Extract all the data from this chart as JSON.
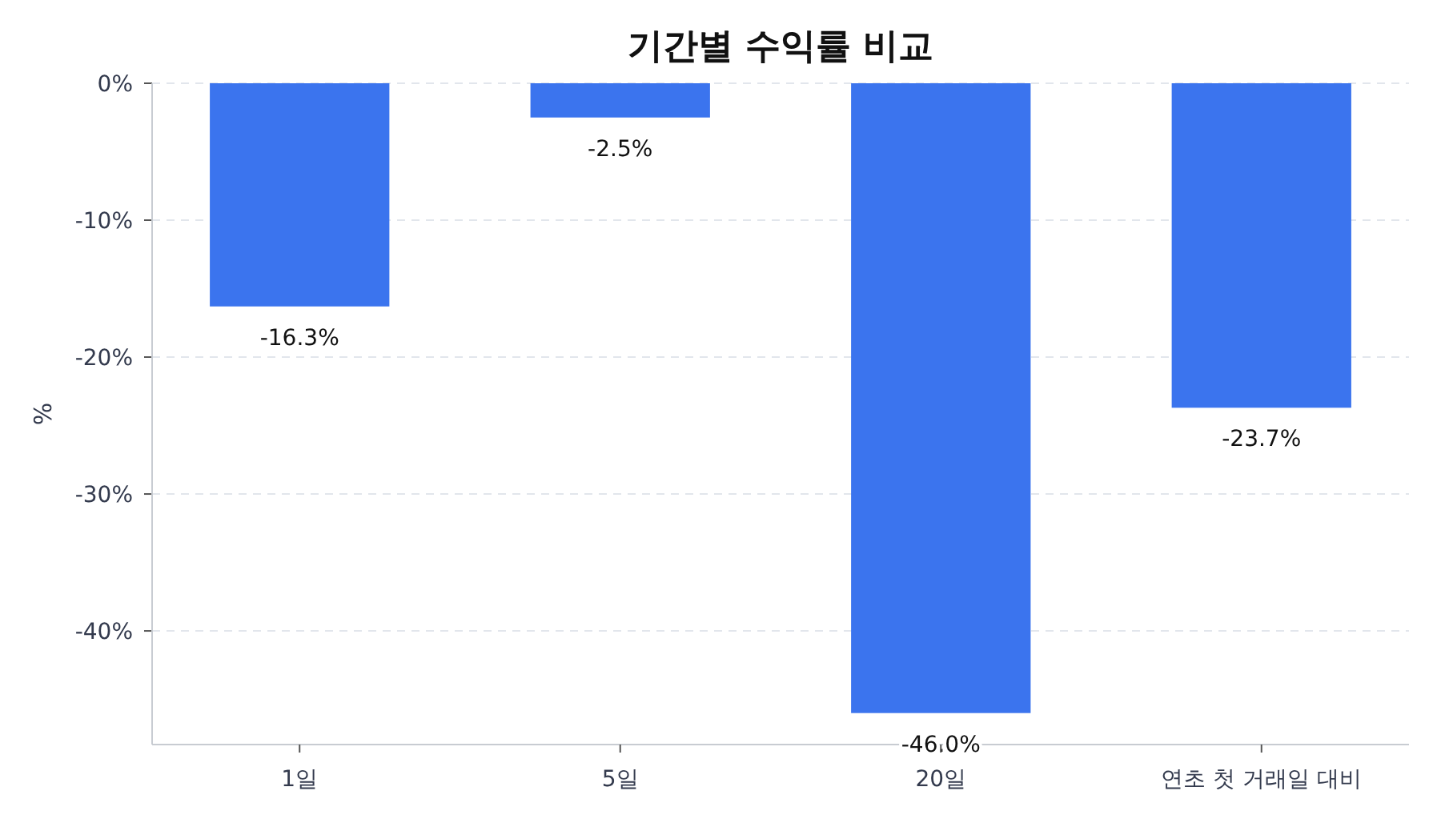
{
  "chart_data": {
    "type": "bar",
    "title": "기간별 수익률 비교",
    "ylabel": "%",
    "categories": [
      "1일",
      "5일",
      "20일",
      "연초 첫 거래일 대비"
    ],
    "values": [
      -16.3,
      -2.5,
      -46.0,
      -23.7
    ],
    "value_labels": [
      "-16.3%",
      "-2.5%",
      "-46.0%",
      "-23.7%"
    ],
    "color": "#3b74ee",
    "ylim": [
      -48.3,
      0
    ],
    "yticks": [
      {
        "value": 0,
        "label": "0%"
      },
      {
        "value": -10,
        "label": "-10%"
      },
      {
        "value": -20,
        "label": "-20%"
      },
      {
        "value": -30,
        "label": "-30%"
      },
      {
        "value": -40,
        "label": "-40%"
      }
    ],
    "grid": "y"
  }
}
